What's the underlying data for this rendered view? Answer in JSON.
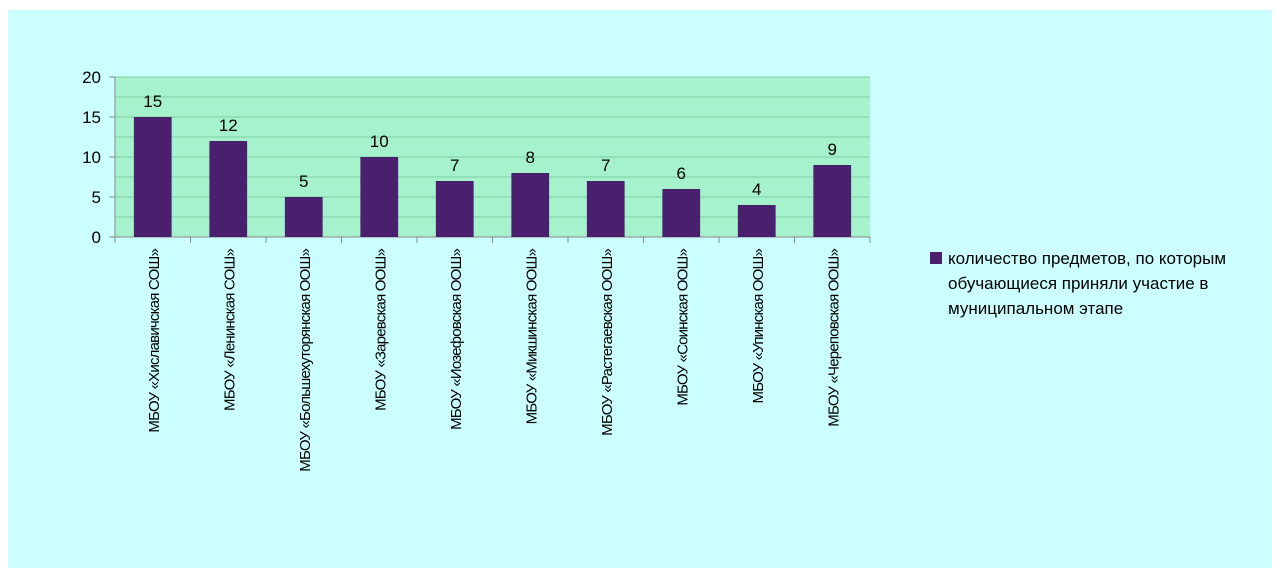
{
  "chart_data": {
    "type": "bar",
    "categories": [
      "МБОУ «Хиславичская СОШ»",
      "МБОУ «Ленинская СОШ»",
      "МБОУ «Большехуторянская ООШ»",
      "МБОУ «Заревская ООШ»",
      "МБОУ «Иозефовская ООШ»",
      "МБОУ «Микшинская ООШ»",
      "МБОУ «Растегаевская ООШ»",
      "МБОУ «Соинская ООШ»",
      "МБОУ «Упинская ООШ»",
      "МБОУ «Череповская ООШ»"
    ],
    "series": [
      {
        "name": "количество предметов, по которым обучающиеся приняли участие в муниципальном этапе",
        "color": "#4a1f6e",
        "values": [
          15,
          12,
          5,
          10,
          7,
          8,
          7,
          6,
          4,
          9
        ]
      }
    ],
    "ylim": [
      0,
      20
    ],
    "yticks": [
      0,
      5,
      10,
      15,
      20
    ],
    "minor_yticks": [
      2.5,
      7.5,
      12.5,
      17.5
    ],
    "grid": true,
    "data_labels": true,
    "legend": "right"
  }
}
